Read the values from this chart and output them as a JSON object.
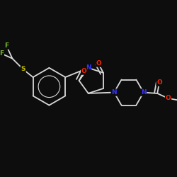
{
  "background_color": "#0d0d0d",
  "bond_color": "#d8d8d8",
  "atom_colors": {
    "N": "#3333ff",
    "O": "#ff2200",
    "S": "#b8b800",
    "F": "#77bb33",
    "C": "#d8d8d8"
  },
  "figsize": [
    2.5,
    2.5
  ],
  "dpi": 100
}
